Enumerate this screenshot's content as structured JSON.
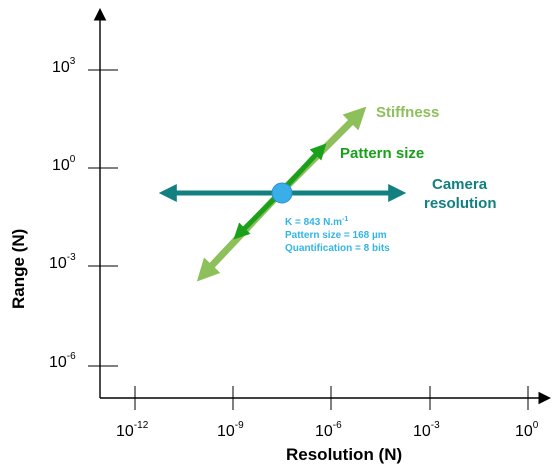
{
  "axes": {
    "x_title": "Resolution (N)",
    "y_title": "Range (N)",
    "x_ticks": [
      {
        "base": "10",
        "exp": "-12"
      },
      {
        "base": "10",
        "exp": "-9"
      },
      {
        "base": "10",
        "exp": "-6"
      },
      {
        "base": "10",
        "exp": "-3"
      },
      {
        "base": "10",
        "exp": "0"
      }
    ],
    "y_ticks": [
      {
        "base": "10",
        "exp": "3"
      },
      {
        "base": "10",
        "exp": "0"
      },
      {
        "base": "10",
        "exp": "-3"
      },
      {
        "base": "10",
        "exp": "-6"
      }
    ],
    "x_scale": "log",
    "y_scale": "log"
  },
  "arrows": {
    "stiffness": {
      "label": "Stiffness",
      "color": "#8dbf5a"
    },
    "pattern_size": {
      "label": "Pattern size",
      "color": "#1aa01a"
    },
    "camera": {
      "label_line1": "Camera",
      "label_line2": "resolution",
      "color": "#128080"
    }
  },
  "point": {
    "color": "#3aaee8",
    "border": "#2a8fd0"
  },
  "note": {
    "color": "#33b5e5",
    "k_text": "K = 843 N.m",
    "k_exp": "-1",
    "pattern_line": "Pattern size = 168 µm",
    "quant_line": "Quantification = 8 bits"
  }
}
